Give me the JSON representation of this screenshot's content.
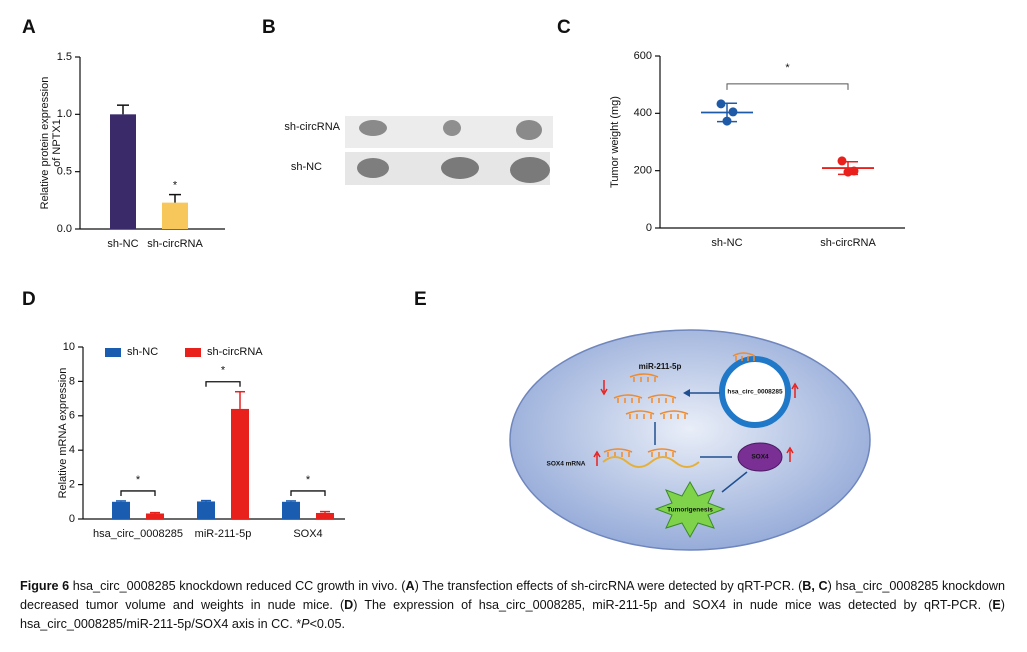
{
  "chart_data": [
    {
      "type": "bar",
      "label": "A",
      "ylabel": [
        "Relative protein expression",
        "of NPTX1"
      ],
      "categories": [
        "sh-NC",
        "sh-circRNA"
      ],
      "values": [
        1.0,
        0.23
      ],
      "errors": [
        0.08,
        0.07
      ],
      "colors": [
        "#3a2a6a",
        "#f8c75c"
      ],
      "ylim": [
        0,
        1.5
      ],
      "yticks": [
        {
          "value": 0,
          "label": "0.0"
        },
        {
          "value": 0.5,
          "label": "0.5"
        },
        {
          "value": 1,
          "label": "1.0"
        },
        {
          "value": 1.5,
          "label": "1.5"
        }
      ],
      "annotations": [
        {
          "text": "*",
          "category": 1
        }
      ]
    },
    {
      "type": "dot",
      "label": "C",
      "ylabel": "Tumor weight (mg)",
      "categories": [
        "sh-NC",
        "sh-circRNA"
      ],
      "values": [
        [
          433,
          405,
          373
        ],
        [
          234,
          199,
          195
        ]
      ],
      "means": [
        403,
        209
      ],
      "errors": [
        32,
        22
      ],
      "colors": [
        "#1f5aa6",
        "#e8211d"
      ],
      "ylim": [
        0,
        600
      ],
      "yticks": [
        0,
        200,
        400,
        600
      ],
      "annotations": [
        {
          "text": "*",
          "categories": [
            0,
            1
          ]
        }
      ]
    },
    {
      "type": "grouped_bar",
      "label": "D",
      "ylabel": "Relative mRNA expression",
      "categories": [
        "hsa_circ_0008285",
        "miR-211-5p",
        "SOX4"
      ],
      "series": [
        {
          "name": "sh-NC",
          "color": "#1a5cb0",
          "values": [
            1.0,
            1.02,
            1.0
          ],
          "errors": [
            0.05,
            0.05,
            0.05
          ]
        },
        {
          "name": "sh-circRNA",
          "color": "#e8211d",
          "values": [
            0.32,
            6.4,
            0.35
          ],
          "errors": [
            0.05,
            1.0,
            0.08
          ]
        }
      ],
      "ylim": [
        0,
        10
      ],
      "yticks": [
        0,
        2,
        4,
        6,
        8,
        10
      ],
      "legend": "upper left",
      "annotations": [
        {
          "text": "*",
          "category": 0
        },
        {
          "text": "*",
          "category": 1
        },
        {
          "text": "*",
          "category": 2
        }
      ]
    }
  ],
  "photo": {
    "label": "B",
    "rows": [
      "sh-circRNA",
      "sh-NC"
    ]
  },
  "diagram": {
    "label": "E",
    "nodes": [
      "miR-211-5p",
      "hsa_circ_0008285",
      "SOX4 mRNA",
      "SOX4",
      "Tumorigenesis"
    ]
  },
  "caption": {
    "runs": [
      {
        "text": "Figure 6",
        "style": "bold"
      },
      {
        "text": " hsa_circ_0008285 knockdown reduced CC growth in vivo. (",
        "style": "normal"
      },
      {
        "text": "A",
        "style": "bold"
      },
      {
        "text": ") The transfection effects of sh-circRNA were detected by qRT-PCR. (",
        "style": "normal"
      },
      {
        "text": "B, C",
        "style": "bold"
      },
      {
        "text": ") hsa_circ_0008285 knockdown decreased tumor volume and weights in nude mice. (",
        "style": "normal"
      },
      {
        "text": "D",
        "style": "bold"
      },
      {
        "text": ") The expression of hsa_circ_0008285, miR-211-5p and SOX4 in nude mice was detected by qRT-PCR. (",
        "style": "normal"
      },
      {
        "text": "E",
        "style": "bold"
      },
      {
        "text": ") hsa_circ_0008285/miR-211-5p/SOX4 axis in CC. *",
        "style": "normal"
      },
      {
        "text": "P",
        "style": "italic"
      },
      {
        "text": "<0.05.",
        "style": "normal"
      }
    ]
  }
}
